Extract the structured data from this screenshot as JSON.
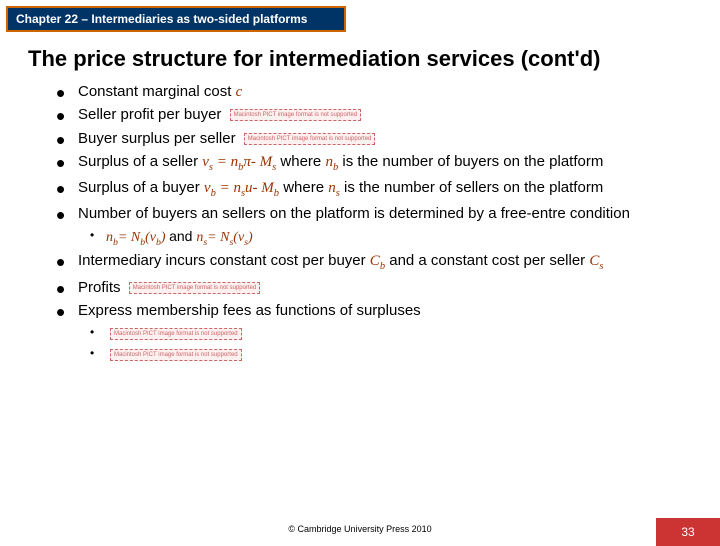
{
  "chapter_label": "Chapter 22 – Intermediaries as two-sided platforms",
  "title": "The price structure for intermediation services (cont'd)",
  "pict_placeholder": "Macintosh PICT\nimage format\nis not supported",
  "bullets": {
    "b1_pre": "Constant marginal cost ",
    "b1_var": "c",
    "b2": "Seller profit per buyer",
    "b3": "Buyer surplus per seller",
    "b4_a": "Surplus of a seller ",
    "b4_vs": "v",
    "b4_s": "s",
    "b4_eq": " = ",
    "b4_nb": "n",
    "b4_b": "b",
    "b4_pi": "π- ",
    "b4_Ms": "M",
    "b4_sMs": "s",
    "b4_where": " where ",
    "b4_nb2": "n",
    "b4_b2": "b",
    "b4_tail": " is the number of buyers on the platform",
    "b5_a": "Surplus of a buyer ",
    "b5_vb": "v",
    "b5_b": "b",
    "b5_eq": " = ",
    "b5_ns": "n",
    "b5_s": "s",
    "b5_u": "u- ",
    "b5_Mb": "M",
    "b5_bMb": "b",
    "b5_where": " where ",
    "b5_ns2": "n",
    "b5_s2": "s",
    "b5_tail": " is the number of sellers on the platform",
    "b6": "Number of buyers an sellers on the platform is determined by a free-entre condition",
    "b6s_nb": "n",
    "b6s_b": "b",
    "b6s_eq1": "= ",
    "b6s_Nb": "N",
    "b6s_Nbb": "b",
    "b6s_p1": "(",
    "b6s_vb": "v",
    "b6s_vbb": "b",
    "b6s_p2": ") ",
    "b6s_and": "and ",
    "b6s_ns": "n",
    "b6s_s": "s",
    "b6s_eq2": "= ",
    "b6s_Ns": "N",
    "b6s_Nss": "s",
    "b6s_p3": "(",
    "b6s_vs": "v",
    "b6s_vss": "s",
    "b6s_p4": ")",
    "b7_a": "Intermediary incurs constant cost per buyer ",
    "b7_Cb": "C",
    "b7_b": "b",
    "b7_mid": " and a constant cost per seller ",
    "b7_Cs": "C",
    "b7_s": "s",
    "b8": "Profits",
    "b9": "Express membership fees as functions of surpluses"
  },
  "copyright": "© Cambridge University Press 2010",
  "page_number": "33",
  "colors": {
    "brand_orange": "#cc6600",
    "brand_navy": "#003366",
    "brand_red": "#cc3333",
    "var_color": "#993300"
  }
}
